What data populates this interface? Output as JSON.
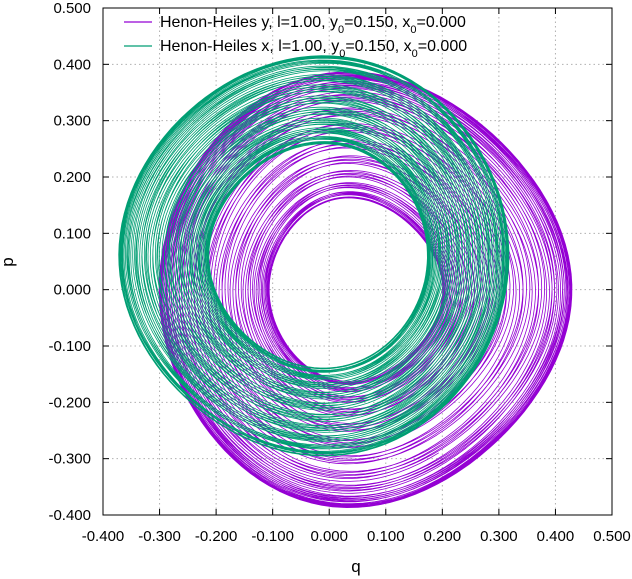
{
  "chart_data": {
    "type": "line",
    "title": "",
    "xlabel": "q",
    "ylabel": "p",
    "xlim": [
      -0.4,
      0.5
    ],
    "ylim": [
      -0.4,
      0.5
    ],
    "xticks": [
      "-0.400",
      "-0.300",
      "-0.200",
      "-0.100",
      "0.000",
      "0.100",
      "0.200",
      "0.300",
      "0.400",
      "0.500"
    ],
    "yticks": [
      "-0.400",
      "-0.300",
      "-0.200",
      "-0.100",
      "0.000",
      "0.100",
      "0.200",
      "0.300",
      "0.400",
      "0.500"
    ],
    "grid": true,
    "legend_position": "top-right",
    "series": [
      {
        "name": "Henon-Heiles y, l=1.00, y 0=0.150, x 0=0.000",
        "legend": {
          "pre": "Henon-Heiles y, l=1.00, y",
          "sub1": "0",
          "mid": "=0.150, x",
          "sub2": "0",
          "post": "=0.000"
        },
        "color": "#9400d3",
        "description_rings": [
          {
            "r_in": 0.155,
            "r_out": 0.4,
            "center_q": 0.03,
            "center_p": 0.0
          }
        ],
        "extent": {
          "q_min": -0.33,
          "q_max": 0.4,
          "p_min": -0.37,
          "p_max": 0.37,
          "inner_q_right": 0.08,
          "inner_p_top": 0.21,
          "inner_p_bottom": -0.16
        }
      },
      {
        "name": "Henon-Heiles x, l=1.00, y 0=0.150, x 0=0.000",
        "legend": {
          "pre": "Henon-Heiles x, l=1.00, y",
          "sub1": "0",
          "mid": "=0.150, x",
          "sub2": "0",
          "post": "=0.000"
        },
        "color": "#009e73",
        "extent": {
          "q_min": -0.38,
          "q_max": 0.34,
          "p_min": -0.28,
          "p_max": 0.4,
          "inner_q_left": -0.17,
          "inner_q_right": 0.16,
          "inner_p_top": 0.22,
          "inner_p_bottom": -0.16
        }
      }
    ]
  }
}
